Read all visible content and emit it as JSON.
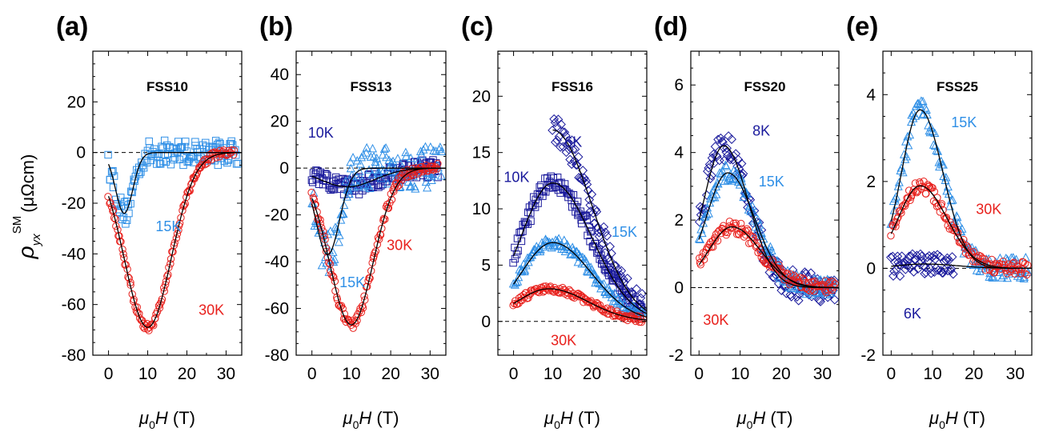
{
  "figure": {
    "ylabel_symbol": "ρ",
    "ylabel_sub": "yx",
    "ylabel_sup": "SM",
    "ylabel_unit": "(μΩcm)",
    "xlabel_symbol": "μ",
    "xlabel_sub": "0",
    "xlabel_var": "H",
    "xlabel_unit": " (T)"
  },
  "colors": {
    "t6": "#1a1a9c",
    "t8": "#1a1a9c",
    "t10": "#1a1a9c",
    "t15": "#2f8fe6",
    "t30": "#e8201c",
    "fit": "#000000"
  },
  "chart_data": [
    {
      "type": "scatter",
      "panel": "(a)",
      "title": "FSS10",
      "xlim": [
        -4,
        34
      ],
      "ylim": [
        -80,
        40
      ],
      "xticks": [
        0,
        10,
        20,
        30
      ],
      "yticks": [
        -80,
        -60,
        -40,
        -20,
        0,
        20
      ],
      "annotations": [
        {
          "text": "15K",
          "x": 12,
          "y": -31,
          "color": "t15"
        },
        {
          "text": "30K",
          "x": 23,
          "y": -64,
          "color": "t30"
        }
      ],
      "series": [
        {
          "color": "t15",
          "marker": "square",
          "min": -24,
          "center": 4.0,
          "width": 2.2,
          "xmax": 33,
          "noise": 5
        },
        {
          "color": "t30",
          "marker": "circle",
          "min": -69,
          "center": 10.0,
          "width": 6.0,
          "xmax": 32,
          "noise": 1.5
        }
      ]
    },
    {
      "type": "scatter",
      "panel": "(b)",
      "title": "FSS13",
      "xlim": [
        -4,
        34
      ],
      "ylim": [
        -80,
        50
      ],
      "xticks": [
        0,
        10,
        20,
        30
      ],
      "yticks": [
        -80,
        -60,
        -40,
        -20,
        0,
        20,
        40
      ],
      "annotations": [
        {
          "text": "10K",
          "x": -1,
          "y": 13,
          "color": "t10"
        },
        {
          "text": "15K",
          "x": 7,
          "y": -51,
          "color": "t15"
        },
        {
          "text": "30K",
          "x": 19,
          "y": -35,
          "color": "t30"
        }
      ],
      "series": [
        {
          "color": "t10",
          "marker": "square",
          "min": -8,
          "center": 9.0,
          "width": 7.0,
          "xmax": 32,
          "noise": 4
        },
        {
          "color": "t15",
          "marker": "triangle",
          "min": -37,
          "center": 4.0,
          "width": 3.0,
          "xmax": 33,
          "noise": 9
        },
        {
          "color": "t30",
          "marker": "circle",
          "min": -67,
          "center": 10.0,
          "width": 5.5,
          "xmax": 32,
          "noise": 2
        }
      ]
    },
    {
      "type": "scatter",
      "panel": "(c)",
      "title": "FSS16",
      "xlim": [
        -4,
        34
      ],
      "ylim": [
        -3,
        24
      ],
      "xticks": [
        0,
        10,
        20,
        30
      ],
      "yticks": [
        0,
        5,
        10,
        15,
        20
      ],
      "annotations": [
        {
          "text": "6K",
          "x": 13,
          "y": 15.5,
          "color": "t6"
        },
        {
          "text": "10K",
          "x": -2.5,
          "y": 12.4,
          "color": "t10"
        },
        {
          "text": "15K",
          "x": 25,
          "y": 7.5,
          "color": "t15"
        },
        {
          "text": "30K",
          "x": 9.5,
          "y": -2.1,
          "color": "t30"
        }
      ],
      "series": [
        {
          "color": "t6",
          "marker": "diamond",
          "peak": 17,
          "center": 10,
          "width": 10,
          "xmin": 10,
          "xmax": 33,
          "noise": 1.2
        },
        {
          "color": "t10",
          "marker": "square",
          "peak": 12.3,
          "center": 10,
          "width": 10,
          "xmax": 33,
          "noise": 0.8
        },
        {
          "color": "t15",
          "marker": "triangle",
          "peak": 7.0,
          "center": 10,
          "width": 10,
          "xmax": 33,
          "noise": 0.5
        },
        {
          "color": "t30",
          "marker": "circle",
          "peak": 2.9,
          "center": 9,
          "width": 10,
          "xmax": 33,
          "noise": 0.3
        }
      ]
    },
    {
      "type": "scatter",
      "panel": "(d)",
      "title": "FSS20",
      "xlim": [
        -2,
        34
      ],
      "ylim": [
        -2,
        7
      ],
      "xticks": [
        0,
        10,
        20,
        30
      ],
      "yticks": [
        -2,
        0,
        2,
        4,
        6
      ],
      "annotations": [
        {
          "text": "8K",
          "x": 13,
          "y": 4.5,
          "color": "t8"
        },
        {
          "text": "15K",
          "x": 14.5,
          "y": 3.0,
          "color": "t15"
        },
        {
          "text": "30K",
          "x": 1,
          "y": -1.1,
          "color": "t30"
        }
      ],
      "series": [
        {
          "color": "t8",
          "marker": "diamond",
          "peak": 4.2,
          "center": 6,
          "width": 6,
          "xmax": 33,
          "noise": 0.45
        },
        {
          "color": "t15",
          "marker": "triangle",
          "peak": 3.4,
          "center": 7,
          "width": 6.5,
          "xmax": 33,
          "noise": 0.25
        },
        {
          "color": "t30",
          "marker": "circle",
          "peak": 1.8,
          "center": 8,
          "width": 7,
          "xmax": 33,
          "noise": 0.2
        }
      ]
    },
    {
      "type": "scatter",
      "panel": "(e)",
      "title": "FSS25",
      "xlim": [
        -2,
        34
      ],
      "ylim": [
        -2,
        5
      ],
      "xticks": [
        0,
        10,
        20,
        30
      ],
      "yticks": [
        -2,
        0,
        2,
        4
      ],
      "annotations": [
        {
          "text": "15K",
          "x": 14.5,
          "y": 3.25,
          "color": "t15"
        },
        {
          "text": "30K",
          "x": 20.5,
          "y": 1.25,
          "color": "t30"
        },
        {
          "text": "6K",
          "x": 3,
          "y": -1.15,
          "color": "t6"
        }
      ],
      "series": [
        {
          "color": "t6",
          "marker": "diamond",
          "peak": 0.1,
          "center": 8,
          "width": 8,
          "xmax": 15,
          "noise": 0.25
        },
        {
          "color": "t15",
          "marker": "triangle",
          "peak": 3.65,
          "center": 7,
          "width": 5.5,
          "xmax": 33,
          "noise": 0.25
        },
        {
          "color": "t30",
          "marker": "circle",
          "peak": 1.9,
          "center": 7,
          "width": 6.5,
          "xmax": 33,
          "noise": 0.15
        }
      ]
    }
  ]
}
